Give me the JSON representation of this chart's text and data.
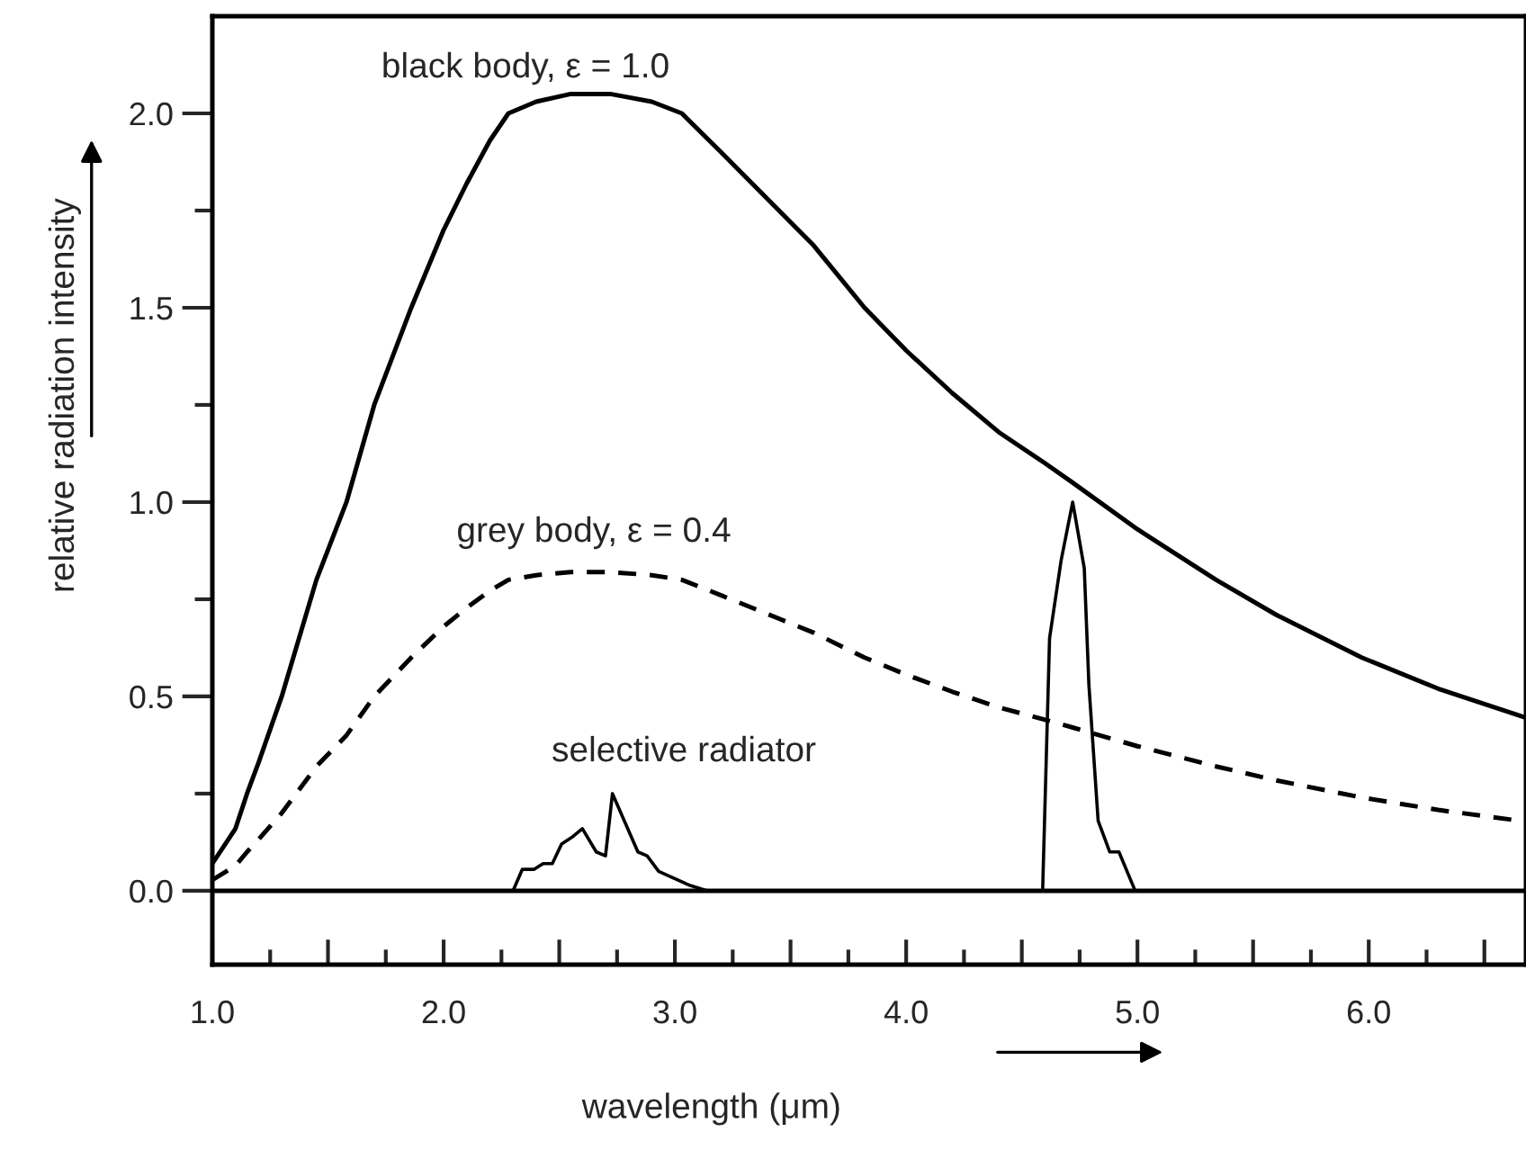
{
  "chart_data": {
    "type": "line",
    "xlabel": "wavelength (μm)",
    "ylabel": "relative radiation intensity",
    "xlim": [
      1.0,
      6.68
    ],
    "ylim": [
      -0.19,
      2.25
    ],
    "xticks": [
      {
        "value": 1.0,
        "label": "1.0"
      },
      {
        "value": 1.25,
        "label": null
      },
      {
        "value": 1.5,
        "label": null
      },
      {
        "value": 1.75,
        "label": null
      },
      {
        "value": 2.0,
        "label": "2.0"
      },
      {
        "value": 2.25,
        "label": null
      },
      {
        "value": 2.5,
        "label": null
      },
      {
        "value": 2.75,
        "label": null
      },
      {
        "value": 3.0,
        "label": "3.0"
      },
      {
        "value": 3.25,
        "label": null
      },
      {
        "value": 3.5,
        "label": null
      },
      {
        "value": 3.75,
        "label": null
      },
      {
        "value": 4.0,
        "label": "4.0"
      },
      {
        "value": 4.25,
        "label": null
      },
      {
        "value": 4.5,
        "label": null
      },
      {
        "value": 4.75,
        "label": null
      },
      {
        "value": 5.0,
        "label": "5.0"
      },
      {
        "value": 5.25,
        "label": null
      },
      {
        "value": 5.5,
        "label": null
      },
      {
        "value": 5.75,
        "label": null
      },
      {
        "value": 6.0,
        "label": "6.0"
      },
      {
        "value": 6.25,
        "label": null
      },
      {
        "value": 6.5,
        "label": null
      }
    ],
    "yticks": [
      {
        "value": 0.0,
        "label": "0.0"
      },
      {
        "value": 0.25,
        "label": null
      },
      0.5,
      {
        "value": 0.75,
        "label": null
      },
      {
        "value": 1.0,
        "label": "1.0"
      },
      {
        "value": 1.25,
        "label": null
      },
      1.5,
      {
        "value": 1.75,
        "label": null
      },
      {
        "value": 2.0,
        "label": "2.0"
      }
    ],
    "grid": false,
    "legend": false,
    "marker": "none",
    "ref_lines": [
      {
        "axis": "y",
        "value": 0.0,
        "color": "#000000",
        "line_style": "solid"
      }
    ],
    "series": [
      {
        "color": "#000000",
        "line_style": "solid",
        "x": [
          1.0,
          1.1,
          1.15,
          1.2,
          1.3,
          1.45,
          1.58,
          1.7,
          1.86,
          2.0,
          2.1,
          2.2,
          2.28,
          2.4,
          2.55,
          2.72,
          2.9,
          3.03,
          3.2,
          3.45,
          3.6,
          3.82,
          4.0,
          4.2,
          4.4,
          4.6,
          4.72,
          5.0,
          5.34,
          5.6,
          5.97,
          6.3,
          6.68
        ],
        "values": [
          0.07,
          0.16,
          0.25,
          0.33,
          0.5,
          0.8,
          1.0,
          1.25,
          1.5,
          1.7,
          1.82,
          1.93,
          2.0,
          2.03,
          2.05,
          2.05,
          2.03,
          2.0,
          1.9,
          1.75,
          1.66,
          1.5,
          1.39,
          1.28,
          1.18,
          1.1,
          1.05,
          0.93,
          0.8,
          0.71,
          0.6,
          0.52,
          0.445
        ]
      },
      {
        "color": "#000000",
        "line_style": "dashed",
        "x": [
          1.0,
          1.1,
          1.15,
          1.2,
          1.3,
          1.45,
          1.58,
          1.7,
          1.86,
          2.0,
          2.1,
          2.2,
          2.28,
          2.4,
          2.55,
          2.72,
          2.9,
          3.03,
          3.2,
          3.45,
          3.6,
          3.82,
          4.0,
          4.2,
          4.4,
          4.6,
          4.72,
          5.0,
          5.34,
          5.6,
          5.97,
          6.3,
          6.68
        ],
        "values": [
          0.028,
          0.064,
          0.1,
          0.132,
          0.2,
          0.32,
          0.4,
          0.5,
          0.6,
          0.68,
          0.728,
          0.772,
          0.8,
          0.812,
          0.82,
          0.82,
          0.812,
          0.8,
          0.76,
          0.7,
          0.664,
          0.6,
          0.556,
          0.512,
          0.472,
          0.44,
          0.42,
          0.372,
          0.32,
          0.284,
          0.24,
          0.208,
          0.178
        ]
      },
      {
        "color": "#000000",
        "line_style": "solid",
        "x": [
          2.3,
          2.34,
          2.39,
          2.43,
          2.47,
          2.51,
          2.56,
          2.6,
          2.66,
          2.7,
          2.73,
          2.84,
          2.88,
          2.93,
          3.06,
          3.14,
          4.59,
          4.62,
          4.67,
          4.72,
          4.77,
          4.79,
          4.83,
          4.88,
          4.92,
          4.99
        ],
        "values": [
          0.0,
          0.055,
          0.055,
          0.07,
          0.07,
          0.12,
          0.14,
          0.16,
          0.1,
          0.09,
          0.25,
          0.1,
          0.09,
          0.05,
          0.015,
          0.0,
          0.0,
          0.65,
          0.85,
          1.0,
          0.83,
          0.53,
          0.18,
          0.1,
          0.1,
          0.0
        ]
      }
    ],
    "annotations": [
      "black body, ε = 1.0",
      "grey body, ε = 0.4",
      "selective radiator"
    ]
  }
}
